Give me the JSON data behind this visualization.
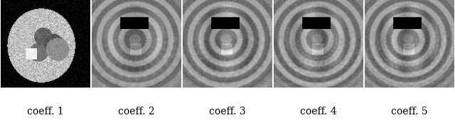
{
  "labels": [
    "coeff. 1",
    "coeff. 2",
    "coeff. 3",
    "coeff. 4",
    "coeff. 5"
  ],
  "n_images": 5,
  "fig_width": 6.4,
  "fig_height": 1.77,
  "dpi": 100,
  "background_color": "#ffffff",
  "label_fontsize": 10,
  "first_image_bg": "#000000",
  "other_image_bg": "#aaaaaa"
}
